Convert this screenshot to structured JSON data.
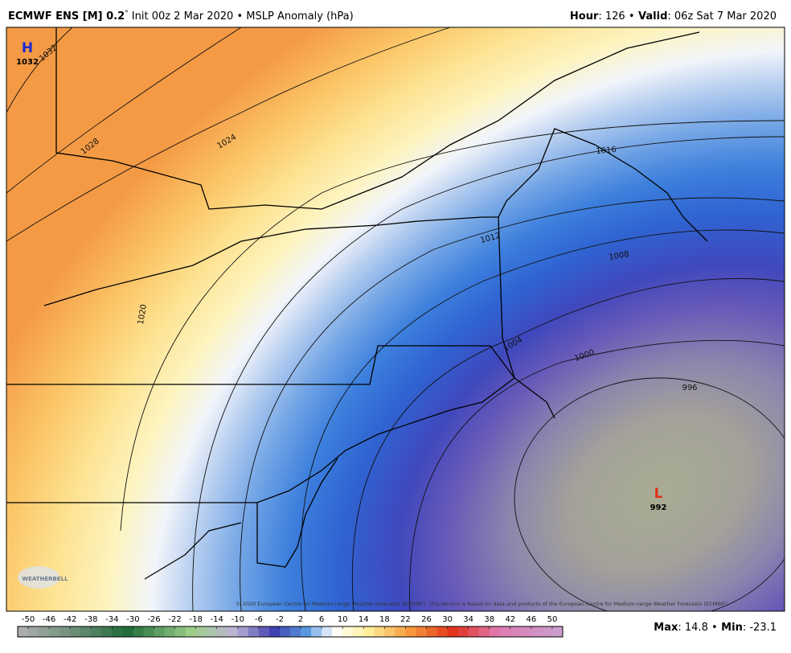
{
  "header": {
    "model": "ECMWF ENS [M] 0.2",
    "degree": "°",
    "init": " Init 00z 2 Mar 2020 ",
    "bullet": "•",
    "field": " MSLP Anomaly (hPa)",
    "hour_label": "Hour",
    "hour": ": 126 ",
    "valid_label": " Valid",
    "valid": ": 06z Sat 7 Mar 2020"
  },
  "map": {
    "high": {
      "symbol": "H",
      "value": "1032"
    },
    "low": {
      "symbol": "L",
      "value": "992"
    },
    "contour_labels": [
      "1032",
      "1028",
      "1024",
      "1020",
      "1016",
      "1012",
      "1008",
      "1004",
      "1000",
      "996"
    ],
    "copyright": "© 2020 European Centre for Medium-range Weather Forecasts (ECMWF). This service is based on data and products of the European Centre for Medium-range Weather Forecasts (ECMWF).",
    "logo": "WEATHERBELL"
  },
  "colorbar": {
    "ticks": [
      -50,
      -46,
      -42,
      -38,
      -34,
      -30,
      -26,
      -22,
      -18,
      -14,
      -10,
      -6,
      -2,
      2,
      6,
      10,
      14,
      18,
      22,
      26,
      30,
      34,
      38,
      42,
      46,
      50
    ]
  },
  "footer": {
    "max_label": "Max",
    "max": ": 14.8 ",
    "bullet": "•",
    "min_label": " Min",
    "min": ": -23.1"
  }
}
